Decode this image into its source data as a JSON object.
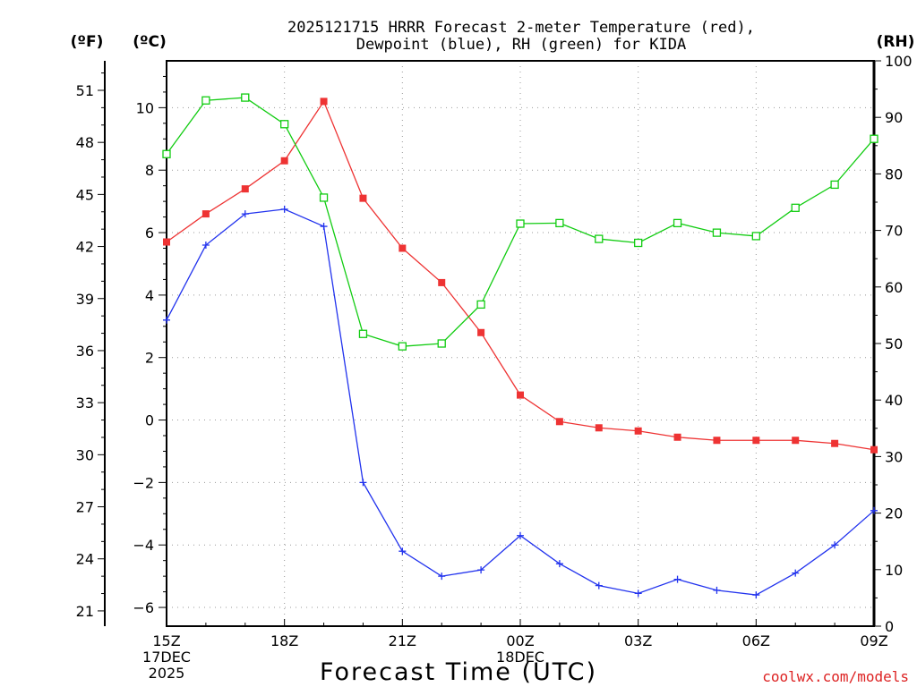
{
  "chart_data": {
    "type": "line",
    "title_line1": "2025121715 HRRR Forecast 2-meter Temperature (red),",
    "title_line2": "Dewpoint (blue), RH (green) for KIDA",
    "xlabel": "Forecast Time (UTC)",
    "credit": "coolwx.com/models",
    "units": {
      "fahrenheit": "(ºF)",
      "celsius": "(ºC)",
      "rh": "(RH)"
    },
    "x_tick_labels": [
      {
        "hour": 0,
        "lines": [
          "15Z",
          "17DEC",
          "2025"
        ]
      },
      {
        "hour": 3,
        "lines": [
          "18Z"
        ]
      },
      {
        "hour": 6,
        "lines": [
          "21Z"
        ]
      },
      {
        "hour": 9,
        "lines": [
          "00Z",
          "18DEC"
        ]
      },
      {
        "hour": 12,
        "lines": [
          "03Z"
        ]
      },
      {
        "hour": 15,
        "lines": [
          "06Z"
        ]
      },
      {
        "hour": 18,
        "lines": [
          "09Z"
        ]
      }
    ],
    "celsius_axis": {
      "range": [
        -6.6,
        11.5
      ],
      "ticks": [
        "-6",
        "-4",
        "-2",
        "0",
        "2",
        "4",
        "6",
        "8",
        "10"
      ]
    },
    "fahrenheit_axis": {
      "ticks": [
        "21",
        "24",
        "27",
        "30",
        "33",
        "36",
        "39",
        "42",
        "45",
        "48",
        "51"
      ]
    },
    "rh_axis": {
      "range": [
        0,
        100
      ],
      "ticks": [
        "0",
        "10",
        "20",
        "30",
        "40",
        "50",
        "60",
        "70",
        "80",
        "90",
        "100"
      ]
    },
    "x_hours": [
      0,
      1,
      2,
      3,
      4,
      5,
      6,
      7,
      8,
      9,
      10,
      11,
      12,
      13,
      14,
      15,
      16,
      17,
      18
    ],
    "series": [
      {
        "name": "Temperature (red)",
        "axis": "celsius",
        "color": "#ee3333",
        "marker": "filled-square",
        "values": [
          5.7,
          6.6,
          7.4,
          8.3,
          10.2,
          7.1,
          5.5,
          4.4,
          2.8,
          0.8,
          -0.05,
          -0.25,
          -0.35,
          -0.55,
          -0.65,
          -0.65,
          -0.65,
          -0.75,
          -0.95
        ]
      },
      {
        "name": "Dewpoint (blue)",
        "axis": "celsius",
        "color": "#2233ee",
        "marker": "plus",
        "values": [
          3.2,
          5.6,
          6.6,
          6.75,
          6.2,
          -2.0,
          -4.2,
          -5.0,
          -4.8,
          -3.7,
          -4.6,
          -5.3,
          -5.55,
          -5.1,
          -5.45,
          -5.6,
          -4.9,
          -4.0,
          -2.9
        ]
      },
      {
        "name": "RH (green)",
        "axis": "rh",
        "color": "#11cc11",
        "marker": "open-square",
        "values": [
          83.5,
          93.0,
          93.5,
          88.8,
          75.8,
          51.7,
          49.5,
          50.0,
          56.9,
          71.2,
          71.3,
          68.5,
          67.8,
          71.3,
          69.6,
          69.0,
          74.0,
          78.1,
          86.2
        ]
      }
    ],
    "grid": true
  }
}
